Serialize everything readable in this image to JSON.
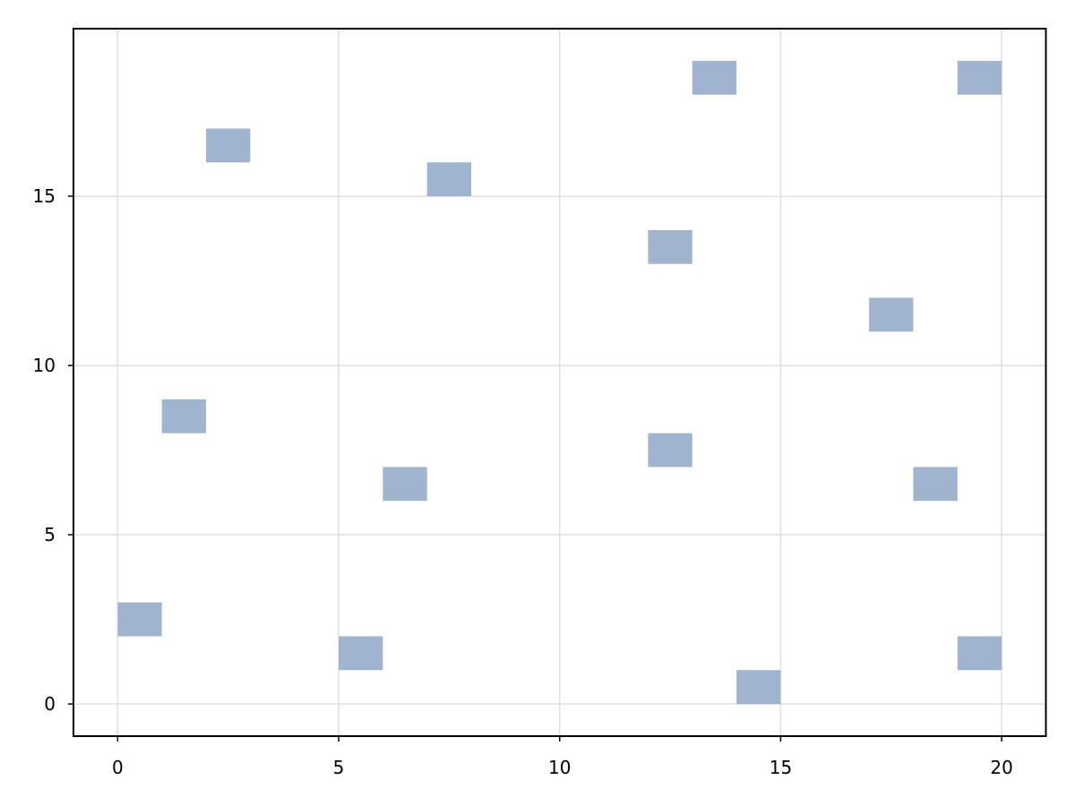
{
  "chart_data": {
    "type": "heatmap",
    "title": "",
    "xlabel": "",
    "ylabel": "",
    "xlim": [
      -1,
      21
    ],
    "ylim": [
      -0.95,
      19.95
    ],
    "grid": true,
    "cell_size": [
      1,
      1
    ],
    "cells": [
      {
        "x": 0,
        "y": 2
      },
      {
        "x": 1,
        "y": 8
      },
      {
        "x": 2,
        "y": 16
      },
      {
        "x": 5,
        "y": 1
      },
      {
        "x": 6,
        "y": 6
      },
      {
        "x": 7,
        "y": 15
      },
      {
        "x": 12,
        "y": 13
      },
      {
        "x": 12,
        "y": 7
      },
      {
        "x": 13,
        "y": 18
      },
      {
        "x": 14,
        "y": 0
      },
      {
        "x": 17,
        "y": 11
      },
      {
        "x": 18,
        "y": 6
      },
      {
        "x": 19,
        "y": 18
      },
      {
        "x": 19,
        "y": 1
      }
    ],
    "xticks": [
      "0",
      "5",
      "10",
      "15",
      "20"
    ],
    "yticks": [
      "0",
      "5",
      "10",
      "15"
    ],
    "colors": {
      "cell": "#a0b5cd",
      "grid": "#e0e0e0",
      "frame": "#000000"
    }
  }
}
